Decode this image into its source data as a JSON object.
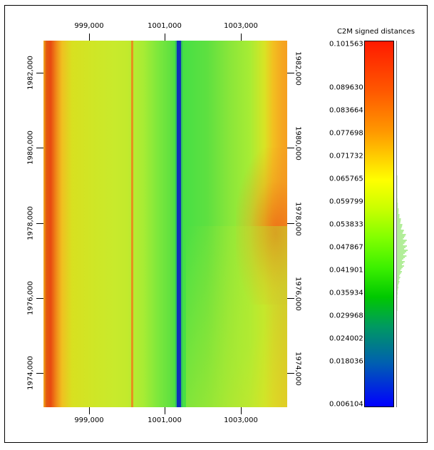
{
  "x_axis": {
    "top_labels": [
      "999,000",
      "1001,000",
      "1003,000"
    ],
    "bottom_labels": [
      "999,000",
      "1001,000",
      "1003,000"
    ]
  },
  "y_axis": {
    "left_labels": [
      "1982,000",
      "1980,000",
      "1978,000",
      "1976,000",
      "1974,000"
    ],
    "right_labels": [
      "1982,000",
      "1980,000",
      "1978,000",
      "1976,000",
      "1974,000"
    ]
  },
  "scale": {
    "title": "C2M signed distances",
    "labels": [
      "0.101563",
      "0.089630",
      "0.083664",
      "0.077698",
      "0.071732",
      "0.065765",
      "0.059799",
      "0.053833",
      "0.047867",
      "0.041901",
      "0.035934",
      "0.029968",
      "0.024002",
      "0.018036",
      "0.006104"
    ],
    "histogram_color": "#66dd33"
  },
  "colors": {
    "background": "#ffffff",
    "frame": "#000000",
    "blue_stripe": "#1030b8"
  }
}
